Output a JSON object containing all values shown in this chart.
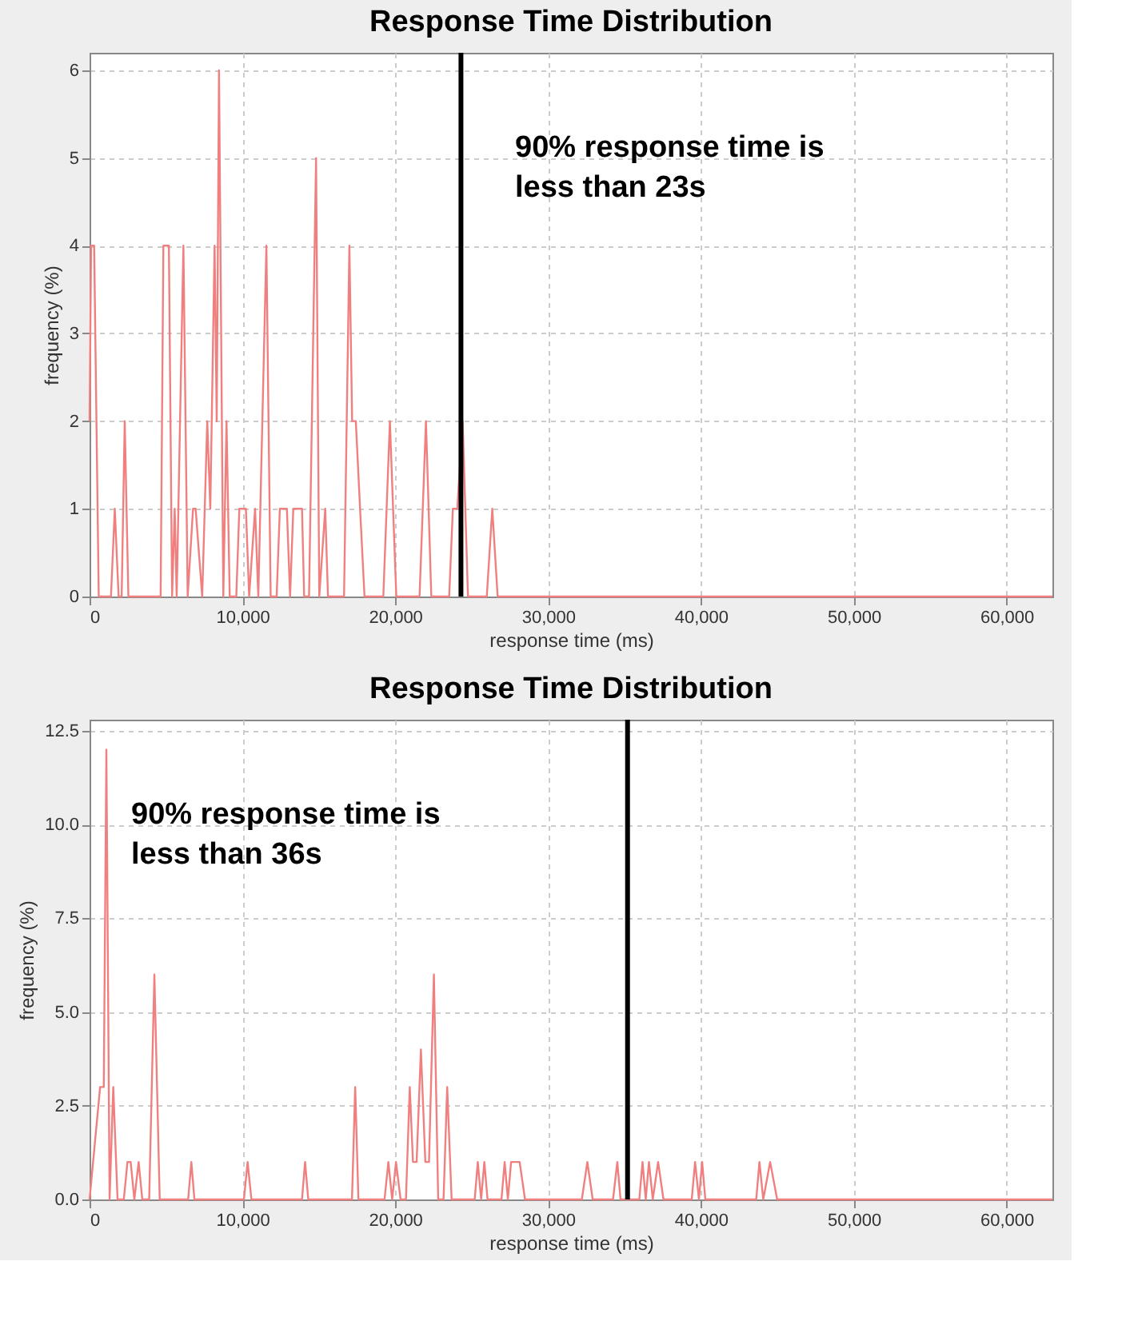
{
  "chart_data": [
    {
      "type": "line",
      "title": "Response Time Distribution",
      "xlabel": "response time (ms)",
      "ylabel": "frequency (%)",
      "x": [
        0,
        100,
        300,
        600,
        1400,
        1650,
        1900,
        2100,
        2300,
        2540,
        4650,
        4830,
        5190,
        5400,
        5570,
        5700,
        6140,
        6420,
        6770,
        6940,
        7370,
        7700,
        7900,
        8180,
        8320,
        8470,
        8750,
        8960,
        9170,
        9600,
        9800,
        10230,
        10440,
        10830,
        11040,
        11570,
        11850,
        12240,
        12450,
        12910,
        13120,
        13330,
        13900,
        14040,
        14360,
        14820,
        15030,
        15420,
        15600,
        16650,
        17000,
        17180,
        17420,
        17700,
        17990,
        19220,
        19650,
        20070,
        21590,
        22010,
        22360,
        23530,
        23770,
        24060,
        24410,
        24760,
        25990,
        26350,
        26700,
        63000
      ],
      "series": [
        {
          "color": "#f08080",
          "values": [
            2,
            4,
            4,
            0,
            0,
            1,
            0,
            0,
            2,
            0,
            0,
            4,
            4,
            0,
            1,
            0,
            4,
            0,
            1,
            1,
            0,
            2,
            1,
            4,
            2,
            6,
            0,
            2,
            0,
            0,
            1,
            1,
            0,
            1,
            0,
            4,
            0,
            0,
            1,
            1,
            0,
            1,
            1,
            0,
            0,
            5,
            0,
            1,
            0,
            0,
            4,
            2,
            2,
            1,
            0,
            0,
            2,
            0,
            0,
            2,
            0,
            0,
            1,
            1,
            2,
            0,
            0,
            1,
            0,
            0
          ]
        }
      ],
      "xlim": [
        0,
        63000
      ],
      "ylim": [
        0,
        6.2
      ],
      "xticks": [
        {
          "value": 0,
          "label": "0"
        },
        {
          "value": 10000,
          "label": "10,000"
        },
        {
          "value": 20000,
          "label": "20,000"
        },
        {
          "value": 30000,
          "label": "30,000"
        },
        {
          "value": 40000,
          "label": "40,000"
        },
        {
          "value": 50000,
          "label": "50,000"
        },
        {
          "value": 60000,
          "label": "60,000"
        }
      ],
      "yticks": [
        0,
        1,
        2,
        3,
        4,
        5,
        6
      ],
      "ref_lines": [
        {
          "axis": "x",
          "value": 24300,
          "color": "#000000"
        }
      ],
      "annotations": [
        "90% response time is\nless than 23s"
      ],
      "grid": true,
      "marker": "none",
      "line_style": "solid"
    },
    {
      "type": "line",
      "title": "Response Time Distribution",
      "xlabel": "response time (ms)",
      "ylabel": "frequency (%)",
      "x": [
        0,
        690,
        930,
        1100,
        1310,
        1550,
        1830,
        2240,
        2480,
        2690,
        2930,
        3210,
        3450,
        3900,
        4240,
        4590,
        6450,
        6660,
        6860,
        10100,
        10340,
        10590,
        13900,
        14100,
        14310,
        17170,
        17380,
        17590,
        19300,
        19550,
        19800,
        20050,
        20350,
        20700,
        20950,
        21160,
        21400,
        21680,
        21970,
        22210,
        22530,
        22810,
        23160,
        23400,
        23690,
        25200,
        25400,
        25620,
        25830,
        26040,
        26950,
        27160,
        27370,
        27580,
        28140,
        28490,
        32210,
        32570,
        32920,
        34250,
        34530,
        34740,
        35970,
        36180,
        36390,
        36600,
        36850,
        37200,
        37550,
        39400,
        39620,
        39870,
        40080,
        40290,
        43620,
        43830,
        44080,
        44530,
        44990,
        63000
      ],
      "series": [
        {
          "color": "#f08080",
          "values": [
            0,
            3,
            3,
            12,
            0,
            3,
            0,
            0,
            1,
            1,
            0,
            1,
            0,
            0,
            6,
            0,
            0,
            1,
            0,
            0,
            1,
            0,
            0,
            1,
            0,
            0,
            3,
            0,
            0,
            1,
            0,
            1,
            0,
            0,
            3,
            1,
            1,
            4,
            1,
            1,
            6,
            0,
            0,
            3,
            0,
            0,
            1,
            0,
            1,
            0,
            0,
            1,
            0,
            1,
            1,
            0,
            0,
            1,
            0,
            0,
            1,
            0,
            0,
            1,
            0,
            1,
            0,
            1,
            0,
            0,
            1,
            0,
            1,
            0,
            0,
            1,
            0,
            1,
            0,
            0
          ]
        }
      ],
      "xlim": [
        0,
        63000
      ],
      "ylim": [
        0,
        12.8
      ],
      "xticks": [
        {
          "value": 0,
          "label": "0"
        },
        {
          "value": 10000,
          "label": "10,000"
        },
        {
          "value": 20000,
          "label": "20,000"
        },
        {
          "value": 30000,
          "label": "30,000"
        },
        {
          "value": 40000,
          "label": "40,000"
        },
        {
          "value": 50000,
          "label": "50,000"
        },
        {
          "value": 60000,
          "label": "60,000"
        }
      ],
      "yticks": [
        {
          "value": 0,
          "label": "0.0"
        },
        {
          "value": 2.5,
          "label": "2.5"
        },
        {
          "value": 5,
          "label": "5.0"
        },
        {
          "value": 7.5,
          "label": "7.5"
        },
        {
          "value": 10,
          "label": "10.0"
        },
        {
          "value": 12.5,
          "label": "12.5"
        }
      ],
      "ref_lines": [
        {
          "axis": "x",
          "value": 35200,
          "color": "#000000"
        }
      ],
      "annotations": [
        "90% response time is\nless than 36s"
      ],
      "grid": true,
      "marker": "none",
      "line_style": "solid"
    }
  ]
}
